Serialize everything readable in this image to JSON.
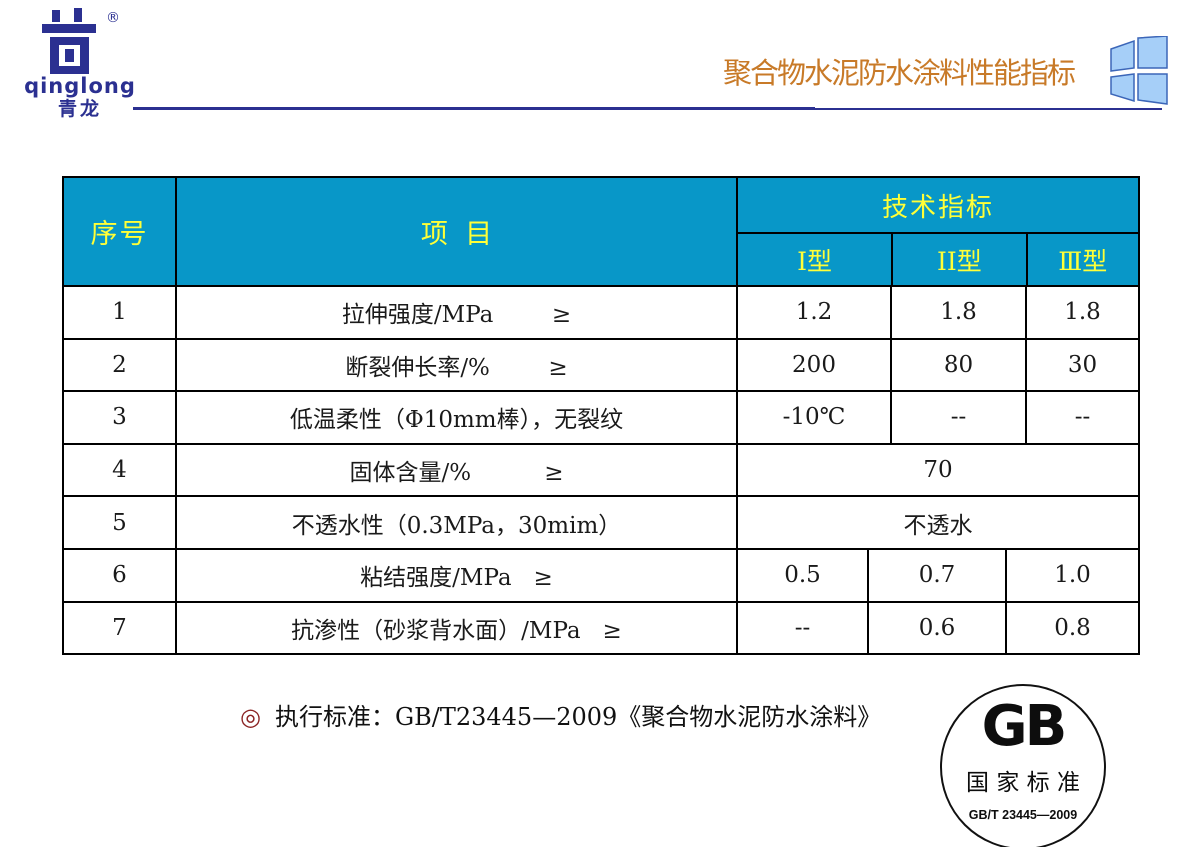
{
  "brand": {
    "registered": "®",
    "name_latin": "qinglong",
    "name_cn": "青龙"
  },
  "header": {
    "title": "聚合物水泥防水涂料性能指标"
  },
  "table": {
    "col_headers": {
      "index": "序号",
      "item": "项  目",
      "group": "技术指标",
      "types": [
        "Ⅰ型",
        "ⅠⅠ型",
        "Ⅲ型"
      ]
    },
    "rows": [
      {
        "num": "1",
        "item": "拉伸强度/MPa        ≥",
        "layout": "early",
        "values": [
          "1.2",
          "1.8",
          "1.8"
        ]
      },
      {
        "num": "2",
        "item": "断裂伸长率/%        ≥",
        "layout": "early",
        "values": [
          "200",
          "80",
          "30"
        ]
      },
      {
        "num": "3",
        "item": "低温柔性（Φ10mm棒），无裂纹",
        "layout": "early",
        "values": [
          "-10℃",
          "--",
          "--"
        ]
      },
      {
        "num": "4",
        "item": "固体含量/%          ≥",
        "layout": "merged",
        "values": [
          "70"
        ]
      },
      {
        "num": "5",
        "item": "不透水性（0.3MPa，30mim）",
        "layout": "merged",
        "values": [
          "不透水"
        ]
      },
      {
        "num": "6",
        "item": "粘结强度/MPa   ≥",
        "layout": "late",
        "values": [
          "0.5",
          "0.7",
          "1.0"
        ]
      },
      {
        "num": "7",
        "item": "抗渗性（砂浆背水面）/MPa   ≥",
        "layout": "late",
        "values": [
          "--",
          "0.6",
          "0.8"
        ]
      }
    ]
  },
  "footer": {
    "bullet": "◎",
    "standard_text": "执行标准：GB/T23445—2009《聚合物水泥防水涂料》"
  },
  "gb_seal": {
    "gb": "GB",
    "label": "国 家 标 准",
    "code": "GB/T 23445—2009"
  },
  "colors": {
    "table_header_bg": "#0897C8",
    "table_header_text": "#FFFF38",
    "title_text": "#C87A28",
    "brand_navy": "#2B3091",
    "bullet_red": "#8B2323",
    "window_icon_fill": "#A6CFF8",
    "window_icon_stroke": "#3C66B8"
  }
}
